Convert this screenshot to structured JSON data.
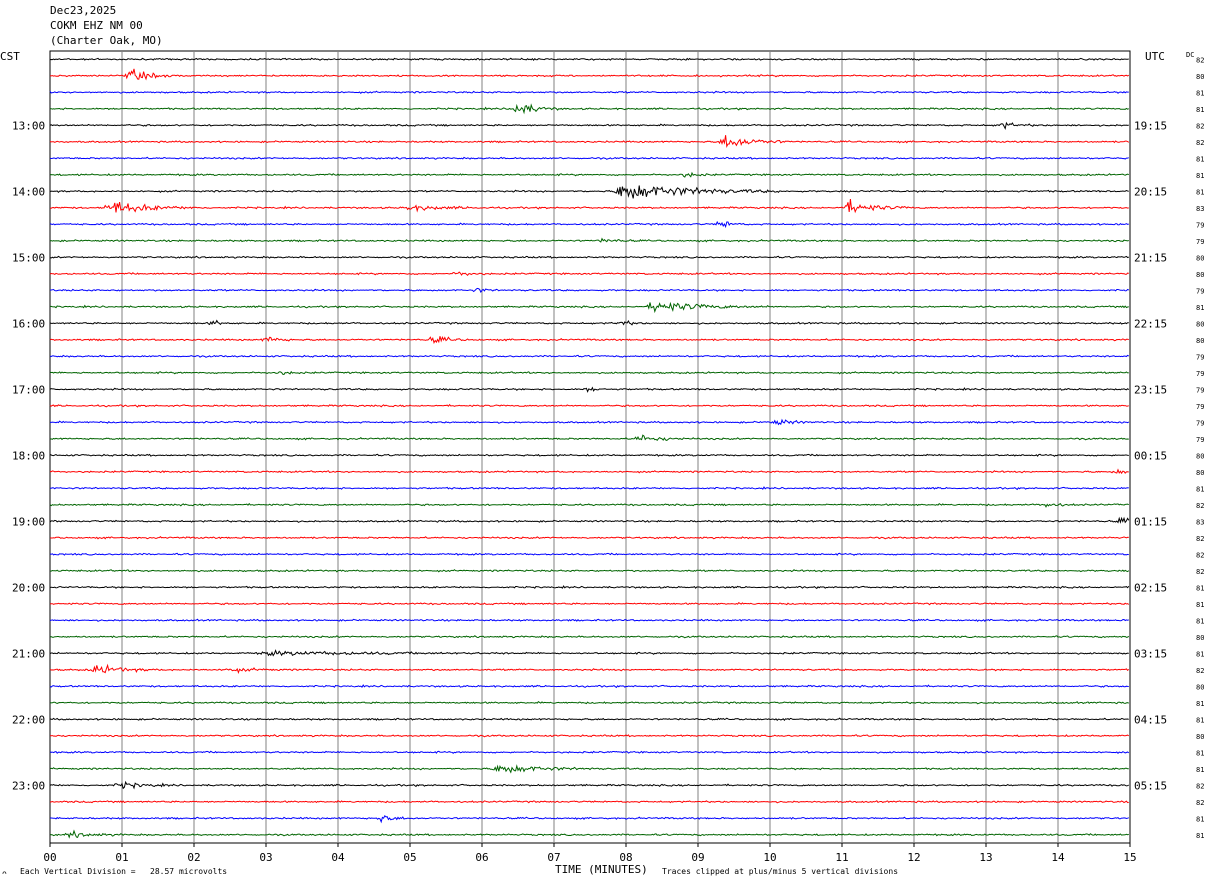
{
  "header": {
    "date": "Dec23,2025",
    "station": "COKM EHZ NM 00",
    "location": "(Charter Oak, MO)"
  },
  "footer": {
    "vertical_division": "Each Vertical Division =   28.57 microvolts",
    "clip_note": "Traces clipped at plus/minus 5 vertical divisions",
    "mark": "ᴖ"
  },
  "chart_data": {
    "type": "line",
    "subtype": "helicorder",
    "xlabel": "TIME (MINUTES)",
    "x_ticks": [
      "00",
      "01",
      "02",
      "03",
      "04",
      "05",
      "06",
      "07",
      "08",
      "09",
      "10",
      "11",
      "12",
      "13",
      "14",
      "15"
    ],
    "xlim": [
      0,
      15
    ],
    "left_axis_label": "CST",
    "right_axis_label": "UTC",
    "dc_label": "DC",
    "left_hour_labels": [
      "13:00",
      "14:00",
      "15:00",
      "16:00",
      "17:00",
      "18:00",
      "19:00",
      "20:00",
      "21:00",
      "22:00",
      "23:00"
    ],
    "right_hour_labels": [
      "19:15",
      "20:15",
      "21:15",
      "22:15",
      "23:15",
      "00:15",
      "01:15",
      "02:15",
      "03:15",
      "04:15",
      "05:15"
    ],
    "dc_values": [
      "82",
      "80",
      "81",
      "81",
      "82",
      "82",
      "81",
      "81",
      "81",
      "83",
      "79",
      "79",
      "80",
      "80",
      "79",
      "81",
      "80",
      "80",
      "79",
      "79",
      "79",
      "79",
      "79",
      "79",
      "80",
      "80",
      "81",
      "82",
      "83",
      "82",
      "82",
      "82",
      "81",
      "81",
      "81",
      "80",
      "81",
      "82",
      "80",
      "81",
      "81",
      "80",
      "81",
      "81",
      "82",
      "82",
      "81",
      "81"
    ],
    "trace_colors": [
      "#000000",
      "#ff0000",
      "#0000ff",
      "#006400"
    ],
    "events": [
      {
        "row": 1,
        "minute": 1.15,
        "amp": 1.8,
        "dur": 0.6
      },
      {
        "row": 3,
        "minute": 6.5,
        "amp": 2.4,
        "dur": 0.6
      },
      {
        "row": 4,
        "minute": 13.25,
        "amp": 0.9,
        "dur": 0.5
      },
      {
        "row": 5,
        "minute": 9.4,
        "amp": 2.4,
        "dur": 0.9
      },
      {
        "row": 7,
        "minute": 8.85,
        "amp": 0.7,
        "dur": 0.4
      },
      {
        "row": 8,
        "minute": 7.95,
        "amp": 3.2,
        "dur": 2.2
      },
      {
        "row": 9,
        "minute": 0.85,
        "amp": 2.2,
        "dur": 1.3
      },
      {
        "row": 9,
        "minute": 11.1,
        "amp": 2.0,
        "dur": 0.9
      },
      {
        "row": 9,
        "minute": 5.0,
        "amp": 0.8,
        "dur": 1.2
      },
      {
        "row": 10,
        "minute": 9.35,
        "amp": 1.3,
        "dur": 0.3
      },
      {
        "row": 11,
        "minute": 7.7,
        "amp": 0.6,
        "dur": 0.5
      },
      {
        "row": 13,
        "minute": 5.7,
        "amp": 0.7,
        "dur": 0.4
      },
      {
        "row": 14,
        "minute": 5.95,
        "amp": 0.6,
        "dur": 0.3
      },
      {
        "row": 15,
        "minute": 8.4,
        "amp": 1.8,
        "dur": 1.6
      },
      {
        "row": 16,
        "minute": 2.3,
        "amp": 0.8,
        "dur": 0.2
      },
      {
        "row": 16,
        "minute": 7.95,
        "amp": 0.9,
        "dur": 0.3
      },
      {
        "row": 17,
        "minute": 3.05,
        "amp": 1.2,
        "dur": 0.4
      },
      {
        "row": 17,
        "minute": 5.35,
        "amp": 1.1,
        "dur": 0.5
      },
      {
        "row": 19,
        "minute": 3.2,
        "amp": 0.5,
        "dur": 0.4
      },
      {
        "row": 20,
        "minute": 7.5,
        "amp": 0.7,
        "dur": 0.3
      },
      {
        "row": 22,
        "minute": 10.1,
        "amp": 0.9,
        "dur": 0.6
      },
      {
        "row": 23,
        "minute": 8.2,
        "amp": 1.1,
        "dur": 0.8
      },
      {
        "row": 25,
        "minute": 14.85,
        "amp": 0.7,
        "dur": 0.3
      },
      {
        "row": 27,
        "minute": 13.85,
        "amp": 0.8,
        "dur": 0.4
      },
      {
        "row": 28,
        "minute": 14.9,
        "amp": 0.9,
        "dur": 0.3
      },
      {
        "row": 36,
        "minute": 3.0,
        "amp": 0.6,
        "dur": 3.5
      },
      {
        "row": 37,
        "minute": 0.65,
        "amp": 1.5,
        "dur": 0.9
      },
      {
        "row": 37,
        "minute": 2.5,
        "amp": 0.6,
        "dur": 0.8
      },
      {
        "row": 43,
        "minute": 6.25,
        "amp": 1.6,
        "dur": 1.4
      },
      {
        "row": 44,
        "minute": 1.0,
        "amp": 0.9,
        "dur": 0.8
      },
      {
        "row": 46,
        "minute": 4.6,
        "amp": 1.1,
        "dur": 0.5
      },
      {
        "row": 47,
        "minute": 0.3,
        "amp": 0.8,
        "dur": 0.8
      }
    ]
  }
}
